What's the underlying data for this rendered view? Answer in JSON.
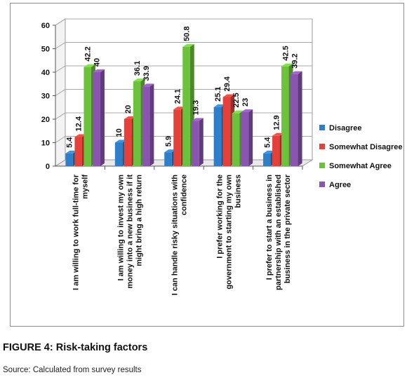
{
  "figure": {
    "caption": "FIGURE 4: Risk-taking factors",
    "source": "Source: Calculated from survey results"
  },
  "colors": {
    "Disagree": "#2e7fc9",
    "Somewhat Disagree": "#e3413a",
    "Somewhat Agree": "#6cc23a",
    "Agree": "#8a55b0"
  },
  "chart_data": {
    "type": "bar",
    "categories": [
      [
        "I am willing to work full-time for",
        "myself"
      ],
      [
        "I am willing to invest my own",
        "money into a new business if it",
        "might bring a high return"
      ],
      [
        "I can handle risky situations with",
        "confidence"
      ],
      [
        "I prefer working for the",
        "government to starting my own",
        "business"
      ],
      [
        "I prefer to start a business in",
        "partnership with an established",
        "business in the private sector"
      ]
    ],
    "series": [
      {
        "name": "Disagree",
        "values": [
          5.4,
          10,
          5.9,
          25.1,
          5.4
        ]
      },
      {
        "name": "Somewhat Disagree",
        "values": [
          12.4,
          20,
          24.1,
          29.4,
          12.9
        ]
      },
      {
        "name": "Somewhat Agree",
        "values": [
          42.2,
          36.1,
          50.8,
          22.5,
          42.5
        ]
      },
      {
        "name": "Agree",
        "values": [
          40,
          33.9,
          19.3,
          23,
          39.2
        ]
      }
    ],
    "yticks": [
      0,
      10,
      20,
      30,
      40,
      50,
      60
    ],
    "ylim": [
      0,
      60
    ],
    "grid": true,
    "legend": "right"
  }
}
